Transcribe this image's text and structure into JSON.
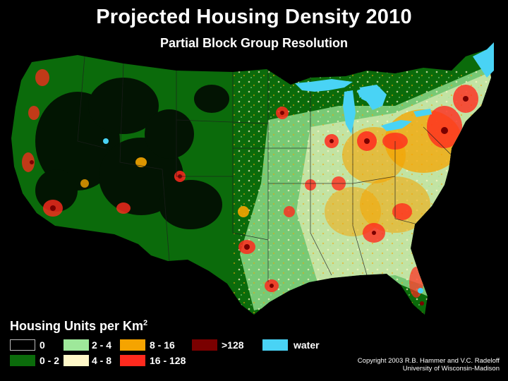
{
  "map": {
    "title": "Projected Housing Density 2010",
    "subtitle": "Partial Block Group Resolution"
  },
  "legend": {
    "title": "Housing Units per Km",
    "title_superscript": "2",
    "items": [
      {
        "label": "0",
        "color": "#000000"
      },
      {
        "label": "0 - 2",
        "color": "#0b6b0b"
      },
      {
        "label": "2 - 4",
        "color": "#9ee89a"
      },
      {
        "label": "4 - 8",
        "color": "#fff8c8"
      },
      {
        "label": "8 - 16",
        "color": "#f5a400"
      },
      {
        "label": "16 - 128",
        "color": "#ff2a1e"
      },
      {
        "label": ">128",
        "color": "#7a0000"
      },
      {
        "label": "water",
        "color": "#49d3f5"
      }
    ]
  },
  "credit": {
    "line1": "Copyright 2003 R.B. Hammer and V.C. Radeloff",
    "line2": "University of Wisconsin-Madison"
  }
}
